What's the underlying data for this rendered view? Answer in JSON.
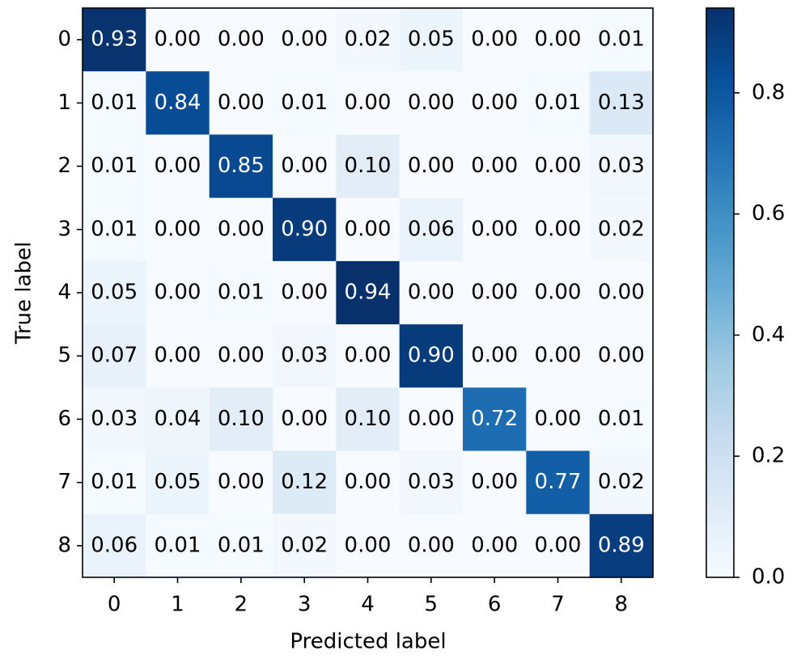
{
  "chart_data": {
    "type": "heatmap",
    "xlabel": "Predicted label",
    "ylabel": "True label",
    "x_categories": [
      "0",
      "1",
      "2",
      "3",
      "4",
      "5",
      "6",
      "7",
      "8"
    ],
    "y_categories": [
      "0",
      "1",
      "2",
      "3",
      "4",
      "5",
      "6",
      "7",
      "8"
    ],
    "values": [
      [
        0.93,
        0,
        0,
        0,
        0.02,
        0.05,
        0,
        0,
        0.01
      ],
      [
        0.01,
        0.84,
        0,
        0.01,
        0,
        0,
        0,
        0.01,
        0.13
      ],
      [
        0.01,
        0,
        0.85,
        0,
        0.1,
        0,
        0,
        0,
        0.03
      ],
      [
        0.01,
        0,
        0,
        0.9,
        0,
        0.06,
        0,
        0,
        0.02
      ],
      [
        0.05,
        0,
        0.01,
        0,
        0.94,
        0,
        0,
        0,
        0
      ],
      [
        0.07,
        0,
        0,
        0.03,
        0,
        0.9,
        0,
        0,
        0
      ],
      [
        0.03,
        0.04,
        0.1,
        0,
        0.1,
        0,
        0.72,
        0,
        0.01
      ],
      [
        0.01,
        0.05,
        0,
        0.12,
        0,
        0.03,
        0,
        0.77,
        0.02
      ],
      [
        0.06,
        0.01,
        0.01,
        0.02,
        0,
        0,
        0,
        0,
        0.89
      ]
    ],
    "value_labels": [
      [
        "0.93",
        "0.00",
        "0.00",
        "0.00",
        "0.02",
        "0.05",
        "0.00",
        "0.00",
        "0.01"
      ],
      [
        "0.01",
        "0.84",
        "0.00",
        "0.01",
        "0.00",
        "0.00",
        "0.00",
        "0.01",
        "0.13"
      ],
      [
        "0.01",
        "0.00",
        "0.85",
        "0.00",
        "0.10",
        "0.00",
        "0.00",
        "0.00",
        "0.03"
      ],
      [
        "0.01",
        "0.00",
        "0.00",
        "0.90",
        "0.00",
        "0.06",
        "0.00",
        "0.00",
        "0.02"
      ],
      [
        "0.05",
        "0.00",
        "0.01",
        "0.00",
        "0.94",
        "0.00",
        "0.00",
        "0.00",
        "0.00"
      ],
      [
        "0.07",
        "0.00",
        "0.00",
        "0.03",
        "0.00",
        "0.90",
        "0.00",
        "0.00",
        "0.00"
      ],
      [
        "0.03",
        "0.04",
        "0.10",
        "0.00",
        "0.10",
        "0.00",
        "0.72",
        "0.00",
        "0.01"
      ],
      [
        "0.01",
        "0.05",
        "0.00",
        "0.12",
        "0.00",
        "0.03",
        "0.00",
        "0.77",
        "0.02"
      ],
      [
        "0.06",
        "0.01",
        "0.01",
        "0.02",
        "0.00",
        "0.00",
        "0.00",
        "0.00",
        "0.89"
      ]
    ],
    "colormap": "Blues",
    "clim": [
      0,
      0.94
    ],
    "cticks": [
      {
        "value": 0,
        "label": "0.0"
      },
      0.2,
      0.4,
      0.6,
      0.8
    ]
  }
}
